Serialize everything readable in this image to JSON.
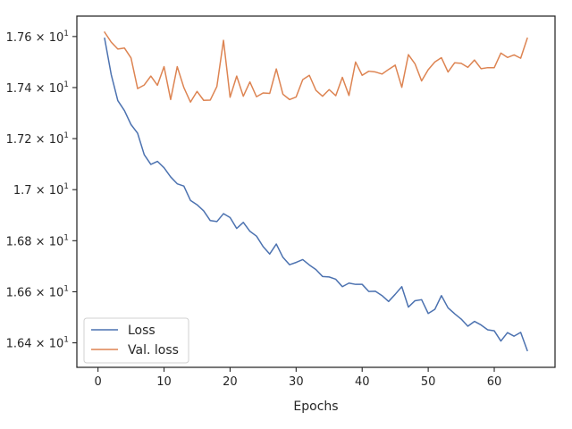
{
  "chart_data": {
    "type": "line",
    "xlabel": "Epochs",
    "ylabel": "",
    "xlim": [
      -3.2,
      69.2
    ],
    "ylim": [
      16.304,
      17.68
    ],
    "x_ticks": [
      0,
      10,
      20,
      30,
      40,
      50,
      60
    ],
    "y_ticks": [
      16.4,
      16.6,
      16.8,
      17.0,
      17.2,
      17.4,
      17.6
    ],
    "y_tick_labels": [
      {
        "mantissa": "1.64",
        "exp": "1"
      },
      {
        "mantissa": "1.66",
        "exp": "1"
      },
      {
        "mantissa": "1.68",
        "exp": "1"
      },
      {
        "mantissa": "1.7",
        "exp": "1"
      },
      {
        "mantissa": "1.72",
        "exp": "1"
      },
      {
        "mantissa": "1.74",
        "exp": "1"
      },
      {
        "mantissa": "1.76",
        "exp": "1"
      }
    ],
    "tick_base": "10",
    "tick_times": "×",
    "x": [
      1,
      2,
      3,
      4,
      5,
      6,
      7,
      8,
      9,
      10,
      11,
      12,
      13,
      14,
      15,
      16,
      17,
      18,
      19,
      20,
      21,
      22,
      23,
      24,
      25,
      26,
      27,
      28,
      29,
      30,
      31,
      32,
      33,
      34,
      35,
      36,
      37,
      38,
      39,
      40,
      41,
      42,
      43,
      44,
      45,
      46,
      47,
      48,
      49,
      50,
      51,
      52,
      53,
      54,
      55,
      56,
      57,
      58,
      59,
      60,
      61,
      62,
      63,
      64,
      65
    ],
    "series": [
      {
        "name": "Loss",
        "color": "#4c72b0",
        "values": [
          17.593,
          17.451,
          17.349,
          17.31,
          17.255,
          17.221,
          17.137,
          17.099,
          17.111,
          17.086,
          17.05,
          17.023,
          17.014,
          16.958,
          16.941,
          16.917,
          16.879,
          16.875,
          16.906,
          16.891,
          16.848,
          16.872,
          16.837,
          16.818,
          16.777,
          16.748,
          16.787,
          16.735,
          16.706,
          16.715,
          16.726,
          16.705,
          16.687,
          16.66,
          16.658,
          16.649,
          16.62,
          16.634,
          16.629,
          16.629,
          16.601,
          16.602,
          16.585,
          16.562,
          16.59,
          16.62,
          16.54,
          16.565,
          16.569,
          16.515,
          16.531,
          16.585,
          16.537,
          16.514,
          16.493,
          16.465,
          16.484,
          16.47,
          16.451,
          16.447,
          16.407,
          16.44,
          16.426,
          16.441,
          16.37
        ]
      },
      {
        "name": "Val. loss",
        "color": "#dd8452",
        "values": [
          17.617,
          17.578,
          17.551,
          17.555,
          17.516,
          17.396,
          17.41,
          17.445,
          17.409,
          17.482,
          17.353,
          17.482,
          17.4,
          17.343,
          17.385,
          17.35,
          17.351,
          17.404,
          17.585,
          17.362,
          17.445,
          17.366,
          17.422,
          17.364,
          17.379,
          17.377,
          17.473,
          17.374,
          17.353,
          17.363,
          17.431,
          17.448,
          17.389,
          17.366,
          17.392,
          17.368,
          17.44,
          17.369,
          17.5,
          17.448,
          17.464,
          17.461,
          17.453,
          17.471,
          17.488,
          17.401,
          17.529,
          17.493,
          17.426,
          17.47,
          17.5,
          17.517,
          17.461,
          17.497,
          17.495,
          17.479,
          17.508,
          17.474,
          17.478,
          17.478,
          17.535,
          17.518,
          17.528,
          17.515,
          17.593
        ]
      }
    ],
    "legend": {
      "position": "lower-left",
      "entries": [
        "Loss",
        "Val. loss"
      ]
    },
    "grid": false
  }
}
